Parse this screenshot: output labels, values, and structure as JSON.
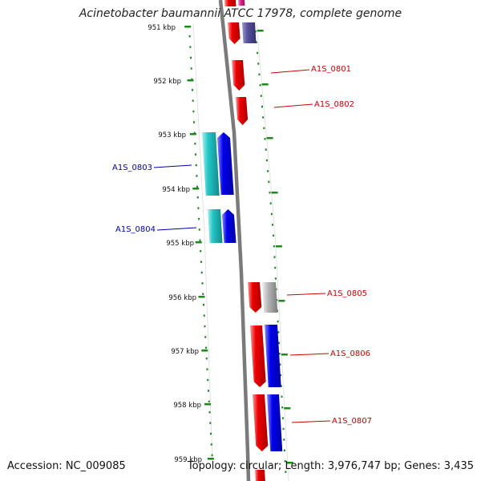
{
  "header": {
    "title": "Acinetobacter baumannii ATCC 17978, complete genome"
  },
  "footer": {
    "accession": "Accession: NC_009085",
    "summary": "Topology: circular; Length: 3,976,747 bp; Genes: 3,435"
  },
  "colors": {
    "backbone": "#7a7a7a",
    "tick": "#1b8a1b",
    "label_forward": "#cc0000",
    "label_reverse": "#0000aa",
    "red": "#ee0000",
    "blue": "#0000ee",
    "cyan": "#22c6c6",
    "purple": "#55509a",
    "magenta": "#e0208a",
    "grey": "#b4b4b4"
  },
  "ticks": [
    {
      "label": "951 kbp"
    },
    {
      "label": "952 kbp"
    },
    {
      "label": "953 kbp"
    },
    {
      "label": "954 kbp"
    },
    {
      "label": "955 kbp"
    },
    {
      "label": "956 kbp"
    },
    {
      "label": "957 kbp"
    },
    {
      "label": "958 kbp"
    },
    {
      "label": "959 kbp"
    }
  ],
  "gene_labels": [
    {
      "name": "A1S_0801",
      "strand": "forward"
    },
    {
      "name": "A1S_0802",
      "strand": "forward"
    },
    {
      "name": "A1S_0803",
      "strand": "reverse"
    },
    {
      "name": "A1S_0804",
      "strand": "reverse"
    },
    {
      "name": "A1S_0805",
      "strand": "forward"
    },
    {
      "name": "A1S_0806",
      "strand": "forward"
    },
    {
      "name": "A1S_0807",
      "strand": "forward"
    }
  ]
}
